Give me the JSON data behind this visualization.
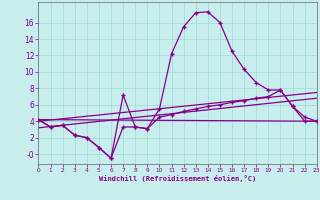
{
  "xlabel": "Windchill (Refroidissement éolien,°C)",
  "bg_color": "#c8eded",
  "grid_color": "#a8dcdc",
  "line_color": "#880088",
  "x_ticks": [
    0,
    1,
    2,
    3,
    4,
    5,
    6,
    7,
    8,
    9,
    10,
    11,
    12,
    13,
    14,
    15,
    16,
    17,
    18,
    19,
    20,
    21,
    22,
    23
  ],
  "ylim": [
    -1.2,
    18.5
  ],
  "xlim": [
    0,
    23
  ],
  "yticks": [
    0,
    2,
    4,
    6,
    8,
    10,
    12,
    14,
    16
  ],
  "ytick_labels": [
    "-0",
    "2",
    "4",
    "6",
    "8",
    "10",
    "12",
    "14",
    "16"
  ],
  "line1_x": [
    0,
    1,
    2,
    3,
    4,
    5,
    6,
    7,
    8,
    9,
    10,
    11,
    12,
    13,
    14,
    15,
    16,
    17,
    18,
    19,
    20,
    21,
    22,
    23
  ],
  "line1_y": [
    4.2,
    3.3,
    3.5,
    2.3,
    2.0,
    0.8,
    -0.5,
    7.2,
    3.3,
    3.1,
    5.5,
    12.2,
    15.5,
    17.2,
    17.3,
    16.0,
    12.5,
    10.3,
    8.7,
    7.8,
    7.8,
    5.8,
    4.0,
    4.0
  ],
  "line2_x": [
    0,
    1,
    2,
    3,
    4,
    5,
    6,
    7,
    8,
    9,
    10,
    11,
    12,
    13,
    14,
    15,
    16,
    17,
    18,
    19,
    20,
    21,
    22,
    23
  ],
  "line2_y": [
    4.2,
    3.3,
    3.5,
    2.3,
    2.0,
    0.8,
    -0.5,
    3.3,
    3.3,
    3.1,
    4.5,
    4.8,
    5.2,
    5.5,
    5.8,
    6.0,
    6.3,
    6.5,
    6.8,
    7.0,
    7.8,
    5.8,
    4.5,
    4.0
  ],
  "line3_x": [
    0,
    23
  ],
  "line3_y": [
    4.2,
    4.0
  ],
  "line4_x": [
    0,
    23
  ],
  "line4_y": [
    4.0,
    7.5
  ],
  "line5_x": [
    0,
    23
  ],
  "line5_y": [
    3.2,
    6.8
  ]
}
